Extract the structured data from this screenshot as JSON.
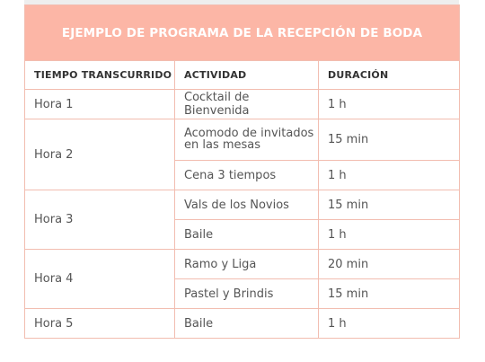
{
  "table": {
    "title": "EJEMPLO DE PROGRAMA DE LA RECEPCIÓN DE BODA",
    "headers": [
      "TIEMPO TRANSCURRIDO",
      "ACTIVIDAD",
      "DURACIÓN"
    ],
    "hours": [
      "Hora 1",
      "Hora 2",
      "Hora 3",
      "Hora 4",
      "Hora 5"
    ],
    "activities": [
      {
        "activity": "Cocktail de Bienvenida",
        "duration": "1 h"
      },
      {
        "activity": "Acomodo de invitados en las mesas",
        "duration": "15 min"
      },
      {
        "activity": "Cena 3 tiempos",
        "duration": "1 h"
      },
      {
        "activity": "Vals de los Novios",
        "duration": "15 min"
      },
      {
        "activity": "Baile",
        "duration": "1 h"
      },
      {
        "activity": "Ramo y Liga",
        "duration": "20 min"
      },
      {
        "activity": "Pastel y Brindis",
        "duration": "15 min"
      },
      {
        "activity": "Baile",
        "duration": "1 h"
      }
    ]
  },
  "colors": {
    "title_bg": "#fcb6a6",
    "border": "#f2bdb0",
    "text": "#555555"
  }
}
